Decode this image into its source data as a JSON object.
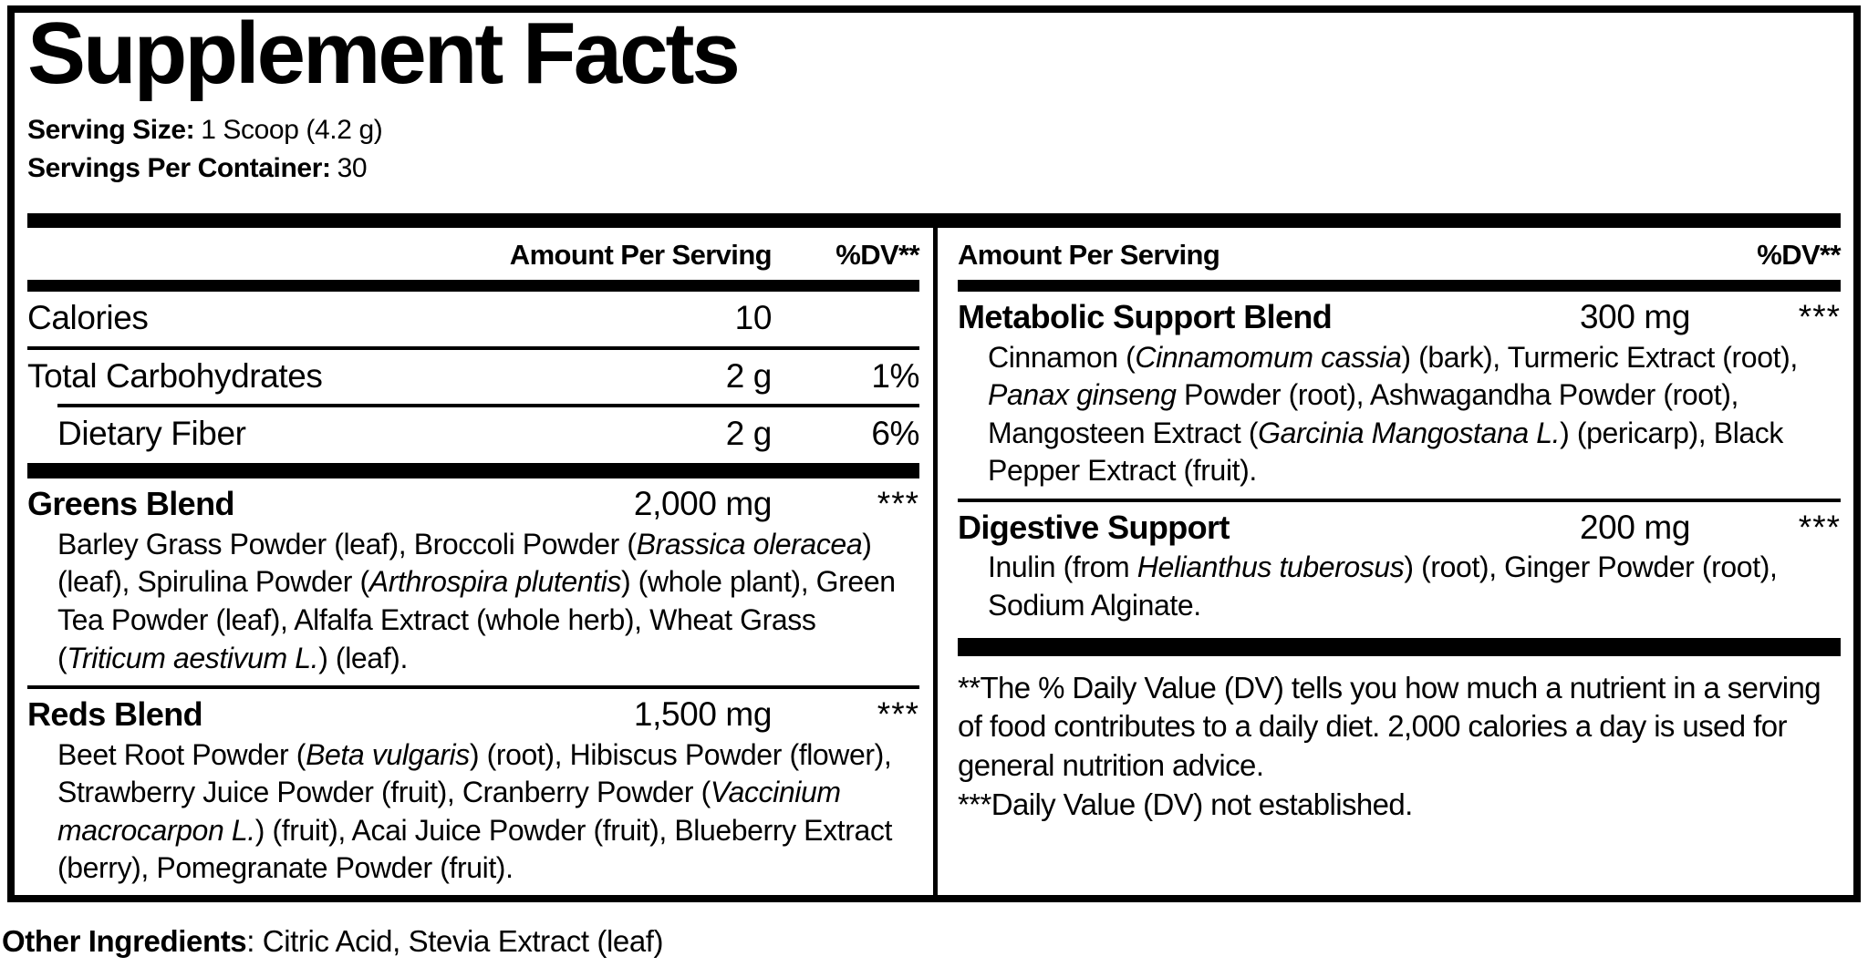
{
  "colors": {
    "text": "#000000",
    "background": "#ffffff",
    "rule": "#000000"
  },
  "title": "Supplement Facts",
  "serving_info": {
    "serving_size_label": "Serving Size:",
    "serving_size_value": "1 Scoop (4.2 g)",
    "servings_per_container_label": "Servings Per Container:",
    "servings_per_container_value": "30"
  },
  "left_column": {
    "header": {
      "amount_label": "Amount Per Serving",
      "dv_label": "%DV**"
    },
    "nutrients": [
      {
        "name": "Calories",
        "amount": "10",
        "dv": ""
      },
      {
        "name": "Total Carbohydrates",
        "amount": "2 g",
        "dv": "1%"
      },
      {
        "name": "Dietary Fiber",
        "amount": "2 g",
        "dv": "6%"
      }
    ],
    "blends": [
      {
        "name": "Greens Blend",
        "amount": "2,000 mg",
        "dv": "***",
        "ingredients": [
          {
            "text": "Barley Grass Powder (leaf), Broccoli Powder (",
            "italic": false
          },
          {
            "text": "Brassica oleracea",
            "italic": true
          },
          {
            "text": ") (leaf), Spirulina Powder (",
            "italic": false
          },
          {
            "text": "Arthrospira plutentis",
            "italic": true
          },
          {
            "text": ") (whole plant), Green Tea Powder (leaf), Alfalfa Extract (whole herb), Wheat Grass (",
            "italic": false
          },
          {
            "text": "Triticum aestivum L.",
            "italic": true
          },
          {
            "text": ") (leaf).",
            "italic": false
          }
        ]
      },
      {
        "name": "Reds Blend",
        "amount": "1,500 mg",
        "dv": "***",
        "ingredients": [
          {
            "text": "Beet Root Powder (",
            "italic": false
          },
          {
            "text": "Beta vulgaris",
            "italic": true
          },
          {
            "text": ") (root), Hibiscus Powder (flower), Strawberry Juice Powder (fruit), Cranberry Powder (",
            "italic": false
          },
          {
            "text": "Vaccinium macrocarpon L.",
            "italic": true
          },
          {
            "text": ") (fruit), Acai Juice Powder (fruit), Blueberry Extract (berry), Pomegranate Powder (fruit).",
            "italic": false
          }
        ]
      }
    ]
  },
  "right_column": {
    "header": {
      "amount_label": "Amount Per Serving",
      "dv_label": "%DV**"
    },
    "blends": [
      {
        "name": "Metabolic Support Blend",
        "amount": "300 mg",
        "dv": "***",
        "ingredients": [
          {
            "text": "Cinnamon (",
            "italic": false
          },
          {
            "text": "Cinnamomum cassia",
            "italic": true
          },
          {
            "text": ") (bark), Turmeric Extract (root), ",
            "italic": false
          },
          {
            "text": "Panax ginseng",
            "italic": true
          },
          {
            "text": " Powder (root), Ashwagandha Powder (root), Mangosteen Extract (",
            "italic": false
          },
          {
            "text": "Garcinia Mangostana L.",
            "italic": true
          },
          {
            "text": ") (pericarp), Black Pepper Extract (fruit).",
            "italic": false
          }
        ]
      },
      {
        "name": "Digestive Support",
        "amount": "200 mg",
        "dv": "***",
        "ingredients": [
          {
            "text": "Inulin (from ",
            "italic": false
          },
          {
            "text": "Helianthus tuberosus",
            "italic": true
          },
          {
            "text": ") (root), Ginger Powder (root), Sodium Alginate.",
            "italic": false
          }
        ]
      }
    ],
    "footnotes": [
      "**The % Daily Value (DV) tells you how much a nutrient in a serving of food contributes to a daily diet. 2,000 calories a day is used for general nutrition advice.",
      "***Daily Value (DV) not established."
    ]
  },
  "other_ingredients": {
    "label": "Other Ingredients",
    "value": ": Citric Acid, Stevia Extract (leaf)"
  }
}
